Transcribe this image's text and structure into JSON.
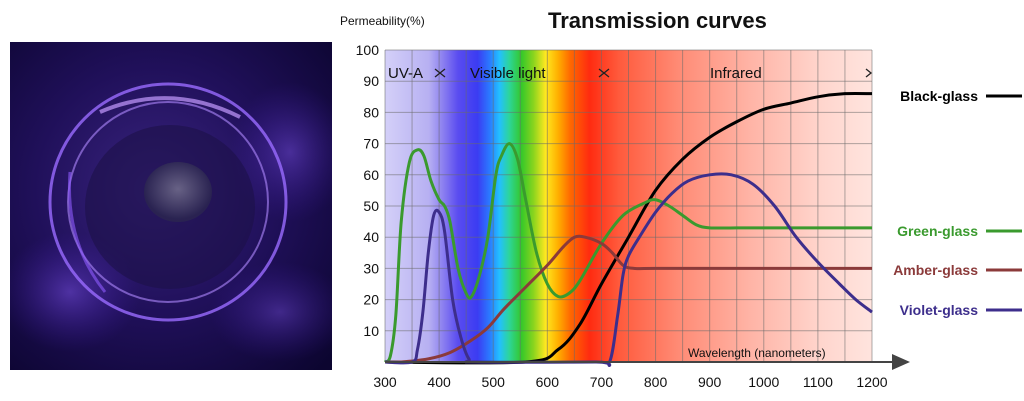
{
  "title": "Transmission curves",
  "chart_data": {
    "type": "line",
    "title": "Transmission curves",
    "ylabel": "Permeability(%)",
    "xlabel": "Wavelength (nanometers)",
    "xlim": [
      300,
      1200
    ],
    "ylim": [
      0,
      100
    ],
    "x_ticks": [
      300,
      400,
      500,
      600,
      700,
      800,
      900,
      1000,
      1100,
      1200
    ],
    "y_ticks": [
      10,
      20,
      30,
      40,
      50,
      60,
      70,
      80,
      90,
      100
    ],
    "grid": true,
    "region_labels": [
      "UV-A",
      "Visible light",
      "Infrared"
    ],
    "series": [
      {
        "name": "Black-glass",
        "color": "#000000",
        "points": [
          [
            300,
            0
          ],
          [
            560,
            0
          ],
          [
            620,
            4
          ],
          [
            660,
            12
          ],
          [
            700,
            25
          ],
          [
            750,
            40
          ],
          [
            800,
            55
          ],
          [
            850,
            65
          ],
          [
            900,
            72
          ],
          [
            950,
            77
          ],
          [
            1000,
            81
          ],
          [
            1050,
            83
          ],
          [
            1100,
            85
          ],
          [
            1150,
            86
          ],
          [
            1200,
            86
          ]
        ]
      },
      {
        "name": "Green-glass",
        "color": "#3a9a2e",
        "points": [
          [
            300,
            0
          ],
          [
            310,
            2
          ],
          [
            320,
            15
          ],
          [
            330,
            45
          ],
          [
            345,
            64
          ],
          [
            360,
            68
          ],
          [
            372,
            66
          ],
          [
            385,
            58
          ],
          [
            400,
            52
          ],
          [
            410,
            50
          ],
          [
            420,
            45
          ],
          [
            435,
            30
          ],
          [
            450,
            22
          ],
          [
            460,
            21
          ],
          [
            475,
            28
          ],
          [
            490,
            40
          ],
          [
            505,
            60
          ],
          [
            515,
            66
          ],
          [
            530,
            70
          ],
          [
            545,
            65
          ],
          [
            560,
            52
          ],
          [
            580,
            35
          ],
          [
            600,
            25
          ],
          [
            620,
            21
          ],
          [
            640,
            22
          ],
          [
            660,
            26
          ],
          [
            700,
            38
          ],
          [
            740,
            47
          ],
          [
            780,
            51
          ],
          [
            800,
            52
          ],
          [
            825,
            50
          ],
          [
            850,
            47
          ],
          [
            875,
            44
          ],
          [
            900,
            43
          ],
          [
            950,
            43
          ],
          [
            1000,
            43
          ],
          [
            1100,
            43
          ],
          [
            1200,
            43
          ]
        ]
      },
      {
        "name": "Amber-glass",
        "color": "#8b3a3a",
        "points": [
          [
            300,
            0
          ],
          [
            330,
            0
          ],
          [
            380,
            1
          ],
          [
            420,
            3
          ],
          [
            460,
            7
          ],
          [
            490,
            11
          ],
          [
            520,
            17
          ],
          [
            560,
            24
          ],
          [
            600,
            31
          ],
          [
            630,
            37
          ],
          [
            650,
            40
          ],
          [
            670,
            40
          ],
          [
            700,
            38
          ],
          [
            720,
            35
          ],
          [
            740,
            31
          ],
          [
            760,
            30
          ],
          [
            800,
            30
          ],
          [
            900,
            30
          ],
          [
            1000,
            30
          ],
          [
            1100,
            30
          ],
          [
            1200,
            30
          ]
        ]
      },
      {
        "name": "Violet-glass",
        "color": "#3d2e8c",
        "points": [
          [
            300,
            0
          ],
          [
            350,
            0
          ],
          [
            360,
            4
          ],
          [
            370,
            16
          ],
          [
            380,
            35
          ],
          [
            390,
            47
          ],
          [
            400,
            48
          ],
          [
            410,
            42
          ],
          [
            425,
            20
          ],
          [
            440,
            8
          ],
          [
            455,
            1
          ],
          [
            470,
            0
          ],
          [
            690,
            0
          ],
          [
            715,
            0
          ],
          [
            730,
            15
          ],
          [
            740,
            28
          ],
          [
            750,
            34
          ],
          [
            770,
            40
          ],
          [
            800,
            48
          ],
          [
            830,
            54
          ],
          [
            860,
            58
          ],
          [
            900,
            60
          ],
          [
            940,
            60
          ],
          [
            980,
            57
          ],
          [
            1020,
            50
          ],
          [
            1060,
            40
          ],
          [
            1100,
            32
          ],
          [
            1140,
            25
          ],
          [
            1170,
            20
          ],
          [
            1200,
            16
          ]
        ]
      }
    ]
  }
}
